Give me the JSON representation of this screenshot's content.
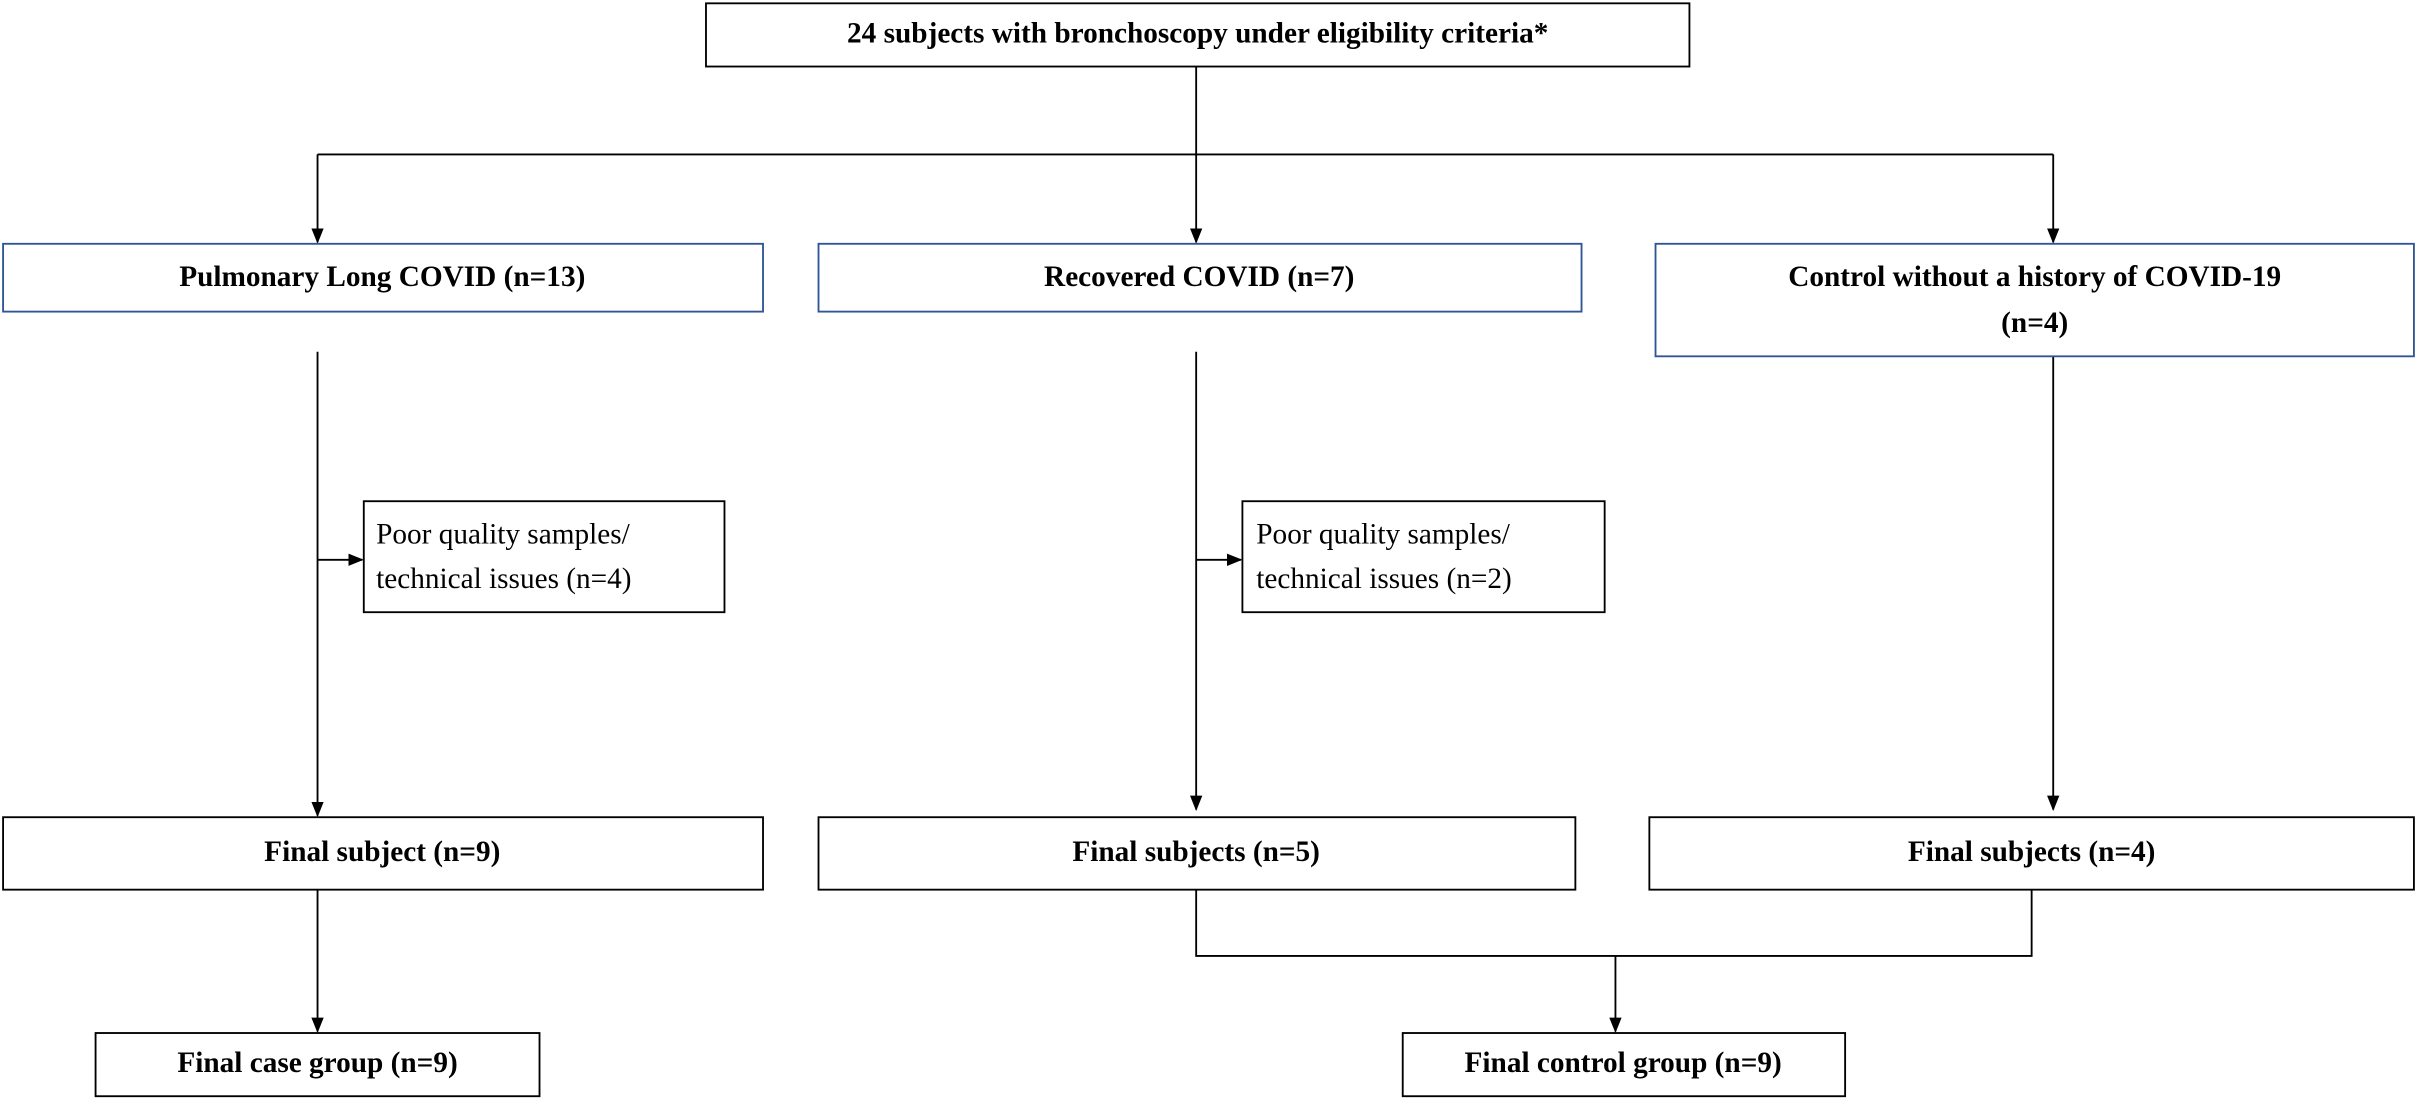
{
  "nodes": [
    {
      "label": "24 subjects with bronchoscopy under eligibility criteria*"
    },
    {
      "label": "Pulmonary Long COVID (n=13)"
    },
    {
      "label": "Recovered COVID (n=7)"
    },
    {
      "lines": [
        "Control without a history of COVID-19",
        "(n=4)"
      ]
    },
    {
      "lines": [
        "Poor quality  samples/",
        "technical issues (n=4)"
      ]
    },
    {
      "lines": [
        "Poor quality  samples/",
        "technical issues (n=2)"
      ]
    },
    {
      "label": "Final subject (n=9)"
    },
    {
      "label": "Final subjects (n=5)"
    },
    {
      "label": "Final subjects (n=4)"
    },
    {
      "label": "Final case group (n=9)"
    },
    {
      "label": "Final control group (n=9)"
    }
  ]
}
